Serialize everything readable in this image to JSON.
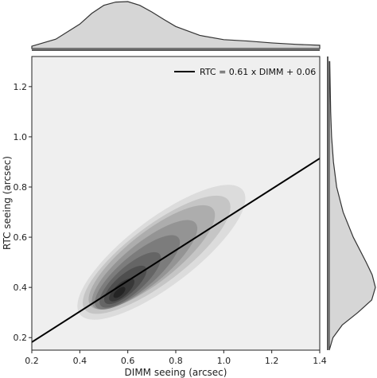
{
  "chart_data": {
    "type": "kde-joint",
    "xlabel": "DIMM seeing (arcsec)",
    "ylabel": "RTC seeing (arcsec)",
    "xlim": [
      0.2,
      1.4
    ],
    "ylim": [
      0.15,
      1.32
    ],
    "xticks": [
      0.2,
      0.4,
      0.6,
      0.8,
      1.0,
      1.2,
      1.4
    ],
    "yticks": [
      0.2,
      0.4,
      0.6,
      0.8,
      1.0,
      1.2
    ],
    "x_tick_labels": [
      "0.2",
      "0.4",
      "0.6",
      "0.8",
      "1.0",
      "1.2",
      "1.4"
    ],
    "y_tick_labels": [
      "0.2",
      "0.4",
      "0.6",
      "0.8",
      "1.0",
      "1.2"
    ],
    "fit": {
      "label": "RTC = 0.61 x DIMM + 0.06",
      "slope": 0.61,
      "intercept": 0.06,
      "color": "#000000"
    },
    "legend_position": "top-right",
    "grid": false,
    "background": "#efefef",
    "density_color": "#000000",
    "density_levels": [
      {
        "center": [
          0.74,
          0.54
        ],
        "radii": [
          0.42,
          0.135
        ],
        "angle_deg": 36,
        "opacity": 0.08
      },
      {
        "center": [
          0.72,
          0.53
        ],
        "radii": [
          0.37,
          0.115
        ],
        "angle_deg": 36,
        "opacity": 0.1
      },
      {
        "center": [
          0.7,
          0.52
        ],
        "radii": [
          0.32,
          0.1
        ],
        "angle_deg": 37,
        "opacity": 0.12
      },
      {
        "center": [
          0.67,
          0.49
        ],
        "radii": [
          0.27,
          0.085
        ],
        "angle_deg": 38,
        "opacity": 0.14
      },
      {
        "center": [
          0.64,
          0.46
        ],
        "radii": [
          0.22,
          0.07
        ],
        "angle_deg": 39,
        "opacity": 0.16
      },
      {
        "center": [
          0.61,
          0.43
        ],
        "radii": [
          0.16,
          0.055
        ],
        "angle_deg": 40,
        "opacity": 0.18
      },
      {
        "center": [
          0.59,
          0.41
        ],
        "radii": [
          0.11,
          0.04
        ],
        "angle_deg": 40,
        "opacity": 0.22
      },
      {
        "center": [
          0.575,
          0.39
        ],
        "radii": [
          0.065,
          0.026
        ],
        "angle_deg": 40,
        "opacity": 0.28
      },
      {
        "center": [
          0.565,
          0.38
        ],
        "radii": [
          0.03,
          0.014
        ],
        "angle_deg": 40,
        "opacity": 0.35
      }
    ],
    "marginal_x": {
      "x": [
        0.2,
        0.3,
        0.4,
        0.45,
        0.5,
        0.55,
        0.6,
        0.65,
        0.7,
        0.75,
        0.8,
        0.9,
        1.0,
        1.1,
        1.2,
        1.3,
        1.4
      ],
      "density": [
        0.05,
        0.2,
        0.52,
        0.75,
        0.92,
        0.99,
        1.0,
        0.92,
        0.78,
        0.62,
        0.47,
        0.28,
        0.19,
        0.16,
        0.12,
        0.09,
        0.07
      ]
    },
    "marginal_y": {
      "y": [
        0.15,
        0.2,
        0.25,
        0.3,
        0.35,
        0.4,
        0.45,
        0.5,
        0.6,
        0.7,
        0.8,
        0.9,
        1.0,
        1.1,
        1.2,
        1.3
      ],
      "density": [
        0.0,
        0.08,
        0.28,
        0.62,
        0.92,
        1.0,
        0.93,
        0.8,
        0.52,
        0.3,
        0.16,
        0.09,
        0.05,
        0.03,
        0.02,
        0.01
      ]
    }
  }
}
